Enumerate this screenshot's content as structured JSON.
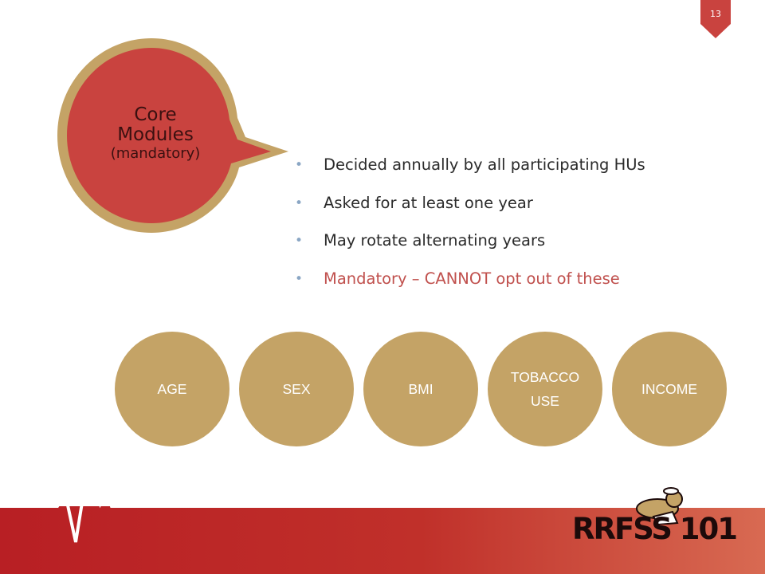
{
  "page_number": "13",
  "bubble": {
    "title_line1": "Core",
    "title_line2": "Modules",
    "subtitle": "(mandatory)"
  },
  "bullets": [
    "Decided annually by all participating HUs",
    "Asked for at least one year",
    "May rotate alternating years",
    "Mandatory – CANNOT opt out of these"
  ],
  "modules": [
    {
      "line1": "AGE",
      "line2": ""
    },
    {
      "line1": "SEX",
      "line2": ""
    },
    {
      "line1": "BMI",
      "line2": ""
    },
    {
      "line1": "TOBACCO",
      "line2": "USE"
    },
    {
      "line1": "INCOME",
      "line2": ""
    }
  ],
  "logo": {
    "text": "RRFSS 101"
  },
  "colors": {
    "brand_red": "#c0504d",
    "bubble_fill": "#c9433f",
    "bubble_border": "#c4a366",
    "circle_fill": "#c4a366",
    "footer_red": "#b81f24",
    "bullet_marker": "#8aa6c4"
  }
}
